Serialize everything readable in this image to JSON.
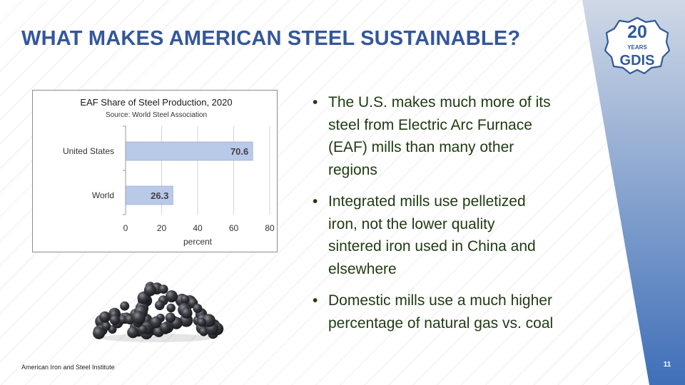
{
  "slide": {
    "title": "WHAT MAKES AMERICAN STEEL SUSTAINABLE?",
    "footer": "American Iron and Steel Institute",
    "page_number": "11"
  },
  "badge": {
    "number": "20",
    "years": "YEARS",
    "name": "GDIS"
  },
  "bullets": [
    {
      "lines": [
        "The U.S. makes much more of its",
        "steel from Electric Arc Furnace",
        "(EAF) mills than many other",
        "regions"
      ]
    },
    {
      "lines": [
        "Integrated mills use pelletized",
        "iron, not the lower quality",
        "sintered iron used in China and",
        "elsewhere"
      ]
    },
    {
      "lines": [
        "Domestic mills use a much higher",
        "percentage of natural gas vs. coal"
      ]
    }
  ],
  "colors": {
    "title": "#34579a",
    "bar_fill": "#b9c9e8",
    "bar_stroke": "#8ea6d2",
    "band_top": "#cfd8e6",
    "band_bottom": "#3f6fb8",
    "bullet_text": "#1f3a12"
  },
  "chart_data": {
    "type": "bar",
    "orientation": "horizontal",
    "title": "EAF Share of Steel Production, 2020",
    "subtitle": "Source: World Steel Association",
    "categories": [
      "United States",
      "World"
    ],
    "values": [
      70.6,
      26.3
    ],
    "value_labels": [
      "70.6",
      "26.3"
    ],
    "xlabel": "percent",
    "ylabel": "",
    "xlim": [
      0,
      80
    ],
    "xticks": [
      0,
      20,
      40,
      60,
      80
    ],
    "grid": true
  },
  "image": {
    "icon": "iron-pellets-image"
  }
}
